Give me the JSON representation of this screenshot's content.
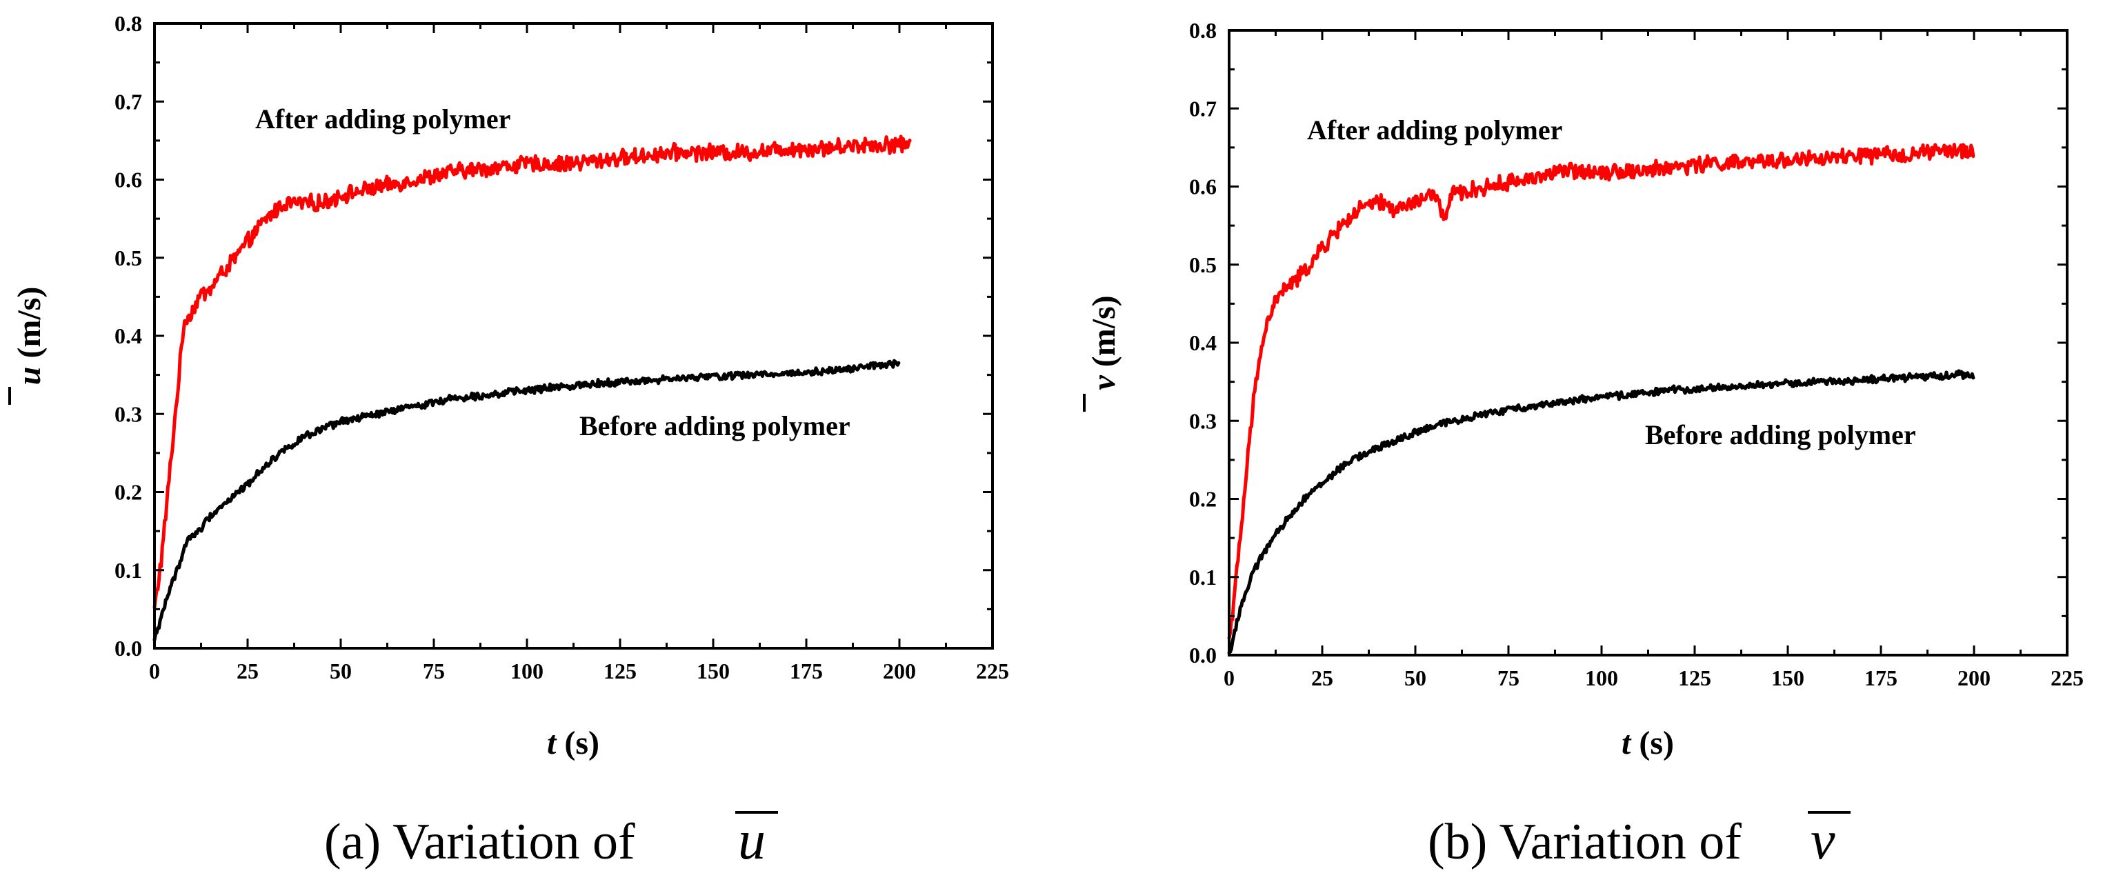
{
  "chart_data": [
    {
      "type": "line",
      "id": "a",
      "title": "",
      "caption_prefix": "(a) Variation of",
      "caption_symbol": "u",
      "xlabel_var": "t",
      "xlabel_unit": " (s)",
      "ylabel_var": "u",
      "ylabel_unit": " (m/s)",
      "xlim": [
        0,
        225
      ],
      "ylim": [
        0.0,
        0.8
      ],
      "xticks": [
        "0",
        "25",
        "50",
        "75",
        "100",
        "125",
        "150",
        "175",
        "200",
        "225"
      ],
      "yticks": [
        "0.0",
        "0.1",
        "0.2",
        "0.3",
        "0.4",
        "0.5",
        "0.6",
        "0.7",
        "0.8"
      ],
      "grid": false,
      "legend": "none",
      "annotations": [
        {
          "text": "After adding polymer",
          "at_x": 27,
          "at_y": 0.685
        },
        {
          "text": "Before adding polymer",
          "at_x": 115,
          "at_y": 0.285
        }
      ],
      "series": [
        {
          "name": "After adding polymer",
          "color": "#ff0000",
          "x": [
            0,
            2,
            4,
            6,
            8,
            10,
            12,
            15,
            18,
            20,
            25,
            30,
            35,
            40,
            45,
            50,
            60,
            70,
            80,
            90,
            100,
            110,
            120,
            130,
            140,
            150,
            160,
            170,
            180,
            190,
            200,
            203
          ],
          "y": [
            0.05,
            0.12,
            0.22,
            0.32,
            0.42,
            0.43,
            0.45,
            0.46,
            0.48,
            0.49,
            0.52,
            0.55,
            0.57,
            0.57,
            0.57,
            0.58,
            0.59,
            0.6,
            0.61,
            0.615,
            0.62,
            0.62,
            0.625,
            0.63,
            0.635,
            0.635,
            0.635,
            0.64,
            0.64,
            0.645,
            0.645,
            0.645
          ]
        },
        {
          "name": "Before adding polymer",
          "color": "#000000",
          "x": [
            0,
            3,
            6,
            9,
            12,
            15,
            20,
            25,
            30,
            35,
            40,
            45,
            50,
            60,
            70,
            80,
            90,
            100,
            110,
            120,
            130,
            140,
            150,
            160,
            170,
            180,
            190,
            200
          ],
          "y": [
            0.01,
            0.06,
            0.1,
            0.14,
            0.15,
            0.17,
            0.19,
            0.21,
            0.235,
            0.255,
            0.27,
            0.28,
            0.29,
            0.3,
            0.31,
            0.32,
            0.325,
            0.33,
            0.335,
            0.34,
            0.342,
            0.345,
            0.348,
            0.35,
            0.352,
            0.355,
            0.36,
            0.365
          ]
        }
      ]
    },
    {
      "type": "line",
      "id": "b",
      "title": "",
      "caption_prefix": "(b) Variation of",
      "caption_symbol": "v",
      "xlabel_var": "t",
      "xlabel_unit": " (s)",
      "ylabel_var": "v",
      "ylabel_unit": " (m/s)",
      "xlim": [
        0,
        225
      ],
      "ylim": [
        0.0,
        0.8
      ],
      "xticks": [
        "0",
        "25",
        "50",
        "75",
        "100",
        "125",
        "150",
        "175",
        "200",
        "225"
      ],
      "yticks": [
        "0.0",
        "0.1",
        "0.2",
        "0.3",
        "0.4",
        "0.5",
        "0.6",
        "0.7",
        "0.8"
      ],
      "grid": false,
      "legend": "none",
      "annotations": [
        {
          "text": "After adding polymer",
          "at_x": 20,
          "at_y": 0.675
        },
        {
          "text": "Before adding polymer",
          "at_x": 112,
          "at_y": 0.275
        }
      ],
      "series": [
        {
          "name": "After adding polymer",
          "color": "#ff0000",
          "x": [
            0,
            2,
            4,
            6,
            8,
            10,
            12,
            15,
            18,
            20,
            25,
            30,
            35,
            40,
            45,
            50,
            55,
            58,
            60,
            65,
            70,
            80,
            90,
            100,
            110,
            120,
            130,
            140,
            150,
            160,
            170,
            180,
            190,
            200
          ],
          "y": [
            0.02,
            0.1,
            0.2,
            0.3,
            0.38,
            0.42,
            0.45,
            0.47,
            0.48,
            0.49,
            0.52,
            0.55,
            0.57,
            0.58,
            0.57,
            0.58,
            0.59,
            0.56,
            0.59,
            0.595,
            0.6,
            0.61,
            0.62,
            0.62,
            0.62,
            0.625,
            0.63,
            0.63,
            0.635,
            0.635,
            0.64,
            0.64,
            0.645,
            0.645
          ]
        },
        {
          "name": "Before adding polymer",
          "color": "#000000",
          "x": [
            0,
            3,
            6,
            9,
            12,
            15,
            20,
            25,
            30,
            35,
            40,
            45,
            50,
            60,
            70,
            80,
            90,
            100,
            110,
            120,
            130,
            140,
            150,
            160,
            170,
            180,
            190,
            200
          ],
          "y": [
            0.0,
            0.06,
            0.1,
            0.13,
            0.15,
            0.17,
            0.2,
            0.22,
            0.24,
            0.255,
            0.265,
            0.275,
            0.285,
            0.3,
            0.31,
            0.318,
            0.325,
            0.33,
            0.335,
            0.34,
            0.342,
            0.345,
            0.348,
            0.35,
            0.352,
            0.355,
            0.358,
            0.36
          ]
        }
      ]
    }
  ]
}
